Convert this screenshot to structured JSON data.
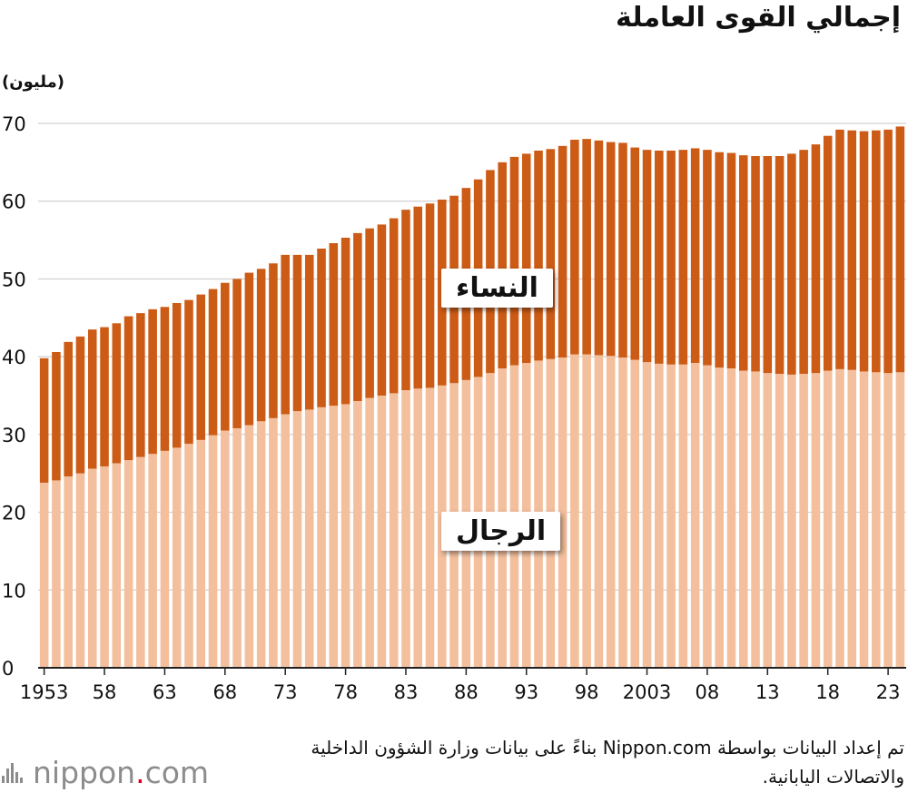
{
  "title": "إجمالي القوى العاملة",
  "unit_label": "(مليون)",
  "source": "تم إعداد البيانات بواسطة Nippon.com بناءً على بيانات وزارة الشؤون الداخلية والاتصالات اليابانية.",
  "logo": {
    "name": "nippon",
    "dot": ".",
    "suffix": "com"
  },
  "colors": {
    "women": "#cc5b15",
    "men": "#f3bf9d",
    "grid": "#d0d0d0",
    "axis": "#222222"
  },
  "chart_data": {
    "type": "bar",
    "stacked": true,
    "ylim": [
      0,
      70
    ],
    "yticks": [
      0,
      10,
      20,
      30,
      40,
      50,
      60,
      70
    ],
    "x": [
      1953,
      1954,
      1955,
      1956,
      1957,
      1958,
      1959,
      1960,
      1961,
      1962,
      1963,
      1964,
      1965,
      1966,
      1967,
      1968,
      1969,
      1970,
      1971,
      1972,
      1973,
      1974,
      1975,
      1976,
      1977,
      1978,
      1979,
      1980,
      1981,
      1982,
      1983,
      1984,
      1985,
      1986,
      1987,
      1988,
      1989,
      1990,
      1991,
      1992,
      1993,
      1994,
      1995,
      1996,
      1997,
      1998,
      1999,
      2000,
      2001,
      2002,
      2003,
      2004,
      2005,
      2006,
      2007,
      2008,
      2009,
      2010,
      2011,
      2012,
      2013,
      2014,
      2015,
      2016,
      2017,
      2018,
      2019,
      2020,
      2021,
      2022,
      2023,
      2024
    ],
    "x_tick_labels": [
      {
        "x": 1953,
        "label": "1953"
      },
      {
        "x": 1958,
        "label": "58"
      },
      {
        "x": 1963,
        "label": "63"
      },
      {
        "x": 1968,
        "label": "68"
      },
      {
        "x": 1973,
        "label": "73"
      },
      {
        "x": 1978,
        "label": "78"
      },
      {
        "x": 1983,
        "label": "83"
      },
      {
        "x": 1988,
        "label": "88"
      },
      {
        "x": 1993,
        "label": "93"
      },
      {
        "x": 1998,
        "label": "98"
      },
      {
        "x": 2003,
        "label": "2003"
      },
      {
        "x": 2008,
        "label": "08"
      },
      {
        "x": 2013,
        "label": "13"
      },
      {
        "x": 2018,
        "label": "18"
      },
      {
        "x": 2023,
        "label": "23"
      }
    ],
    "series": [
      {
        "name": "الرجال",
        "color": "#f3bf9d",
        "values": [
          23.8,
          24.1,
          24.6,
          25.0,
          25.6,
          25.9,
          26.3,
          26.7,
          27.1,
          27.5,
          27.9,
          28.3,
          28.8,
          29.3,
          29.9,
          30.5,
          30.8,
          31.2,
          31.7,
          32.1,
          32.6,
          33.0,
          33.2,
          33.5,
          33.7,
          33.9,
          34.3,
          34.7,
          35.0,
          35.3,
          35.7,
          35.9,
          36.0,
          36.3,
          36.6,
          37.0,
          37.4,
          37.9,
          38.5,
          38.9,
          39.2,
          39.5,
          39.7,
          39.9,
          40.3,
          40.3,
          40.2,
          40.1,
          39.9,
          39.6,
          39.3,
          39.1,
          39.0,
          39.0,
          39.2,
          38.9,
          38.6,
          38.5,
          38.2,
          38.1,
          37.9,
          37.8,
          37.7,
          37.8,
          37.9,
          38.2,
          38.4,
          38.3,
          38.1,
          38.0,
          37.9,
          38.0
        ]
      },
      {
        "name": "النساء",
        "color": "#cc5b15",
        "values": [
          16.0,
          16.5,
          17.3,
          17.6,
          17.9,
          17.9,
          18.0,
          18.5,
          18.5,
          18.6,
          18.5,
          18.6,
          18.5,
          18.7,
          18.8,
          19.0,
          19.2,
          19.6,
          19.6,
          19.9,
          20.5,
          20.1,
          19.9,
          20.4,
          20.9,
          21.4,
          21.6,
          21.8,
          22.0,
          22.5,
          23.2,
          23.4,
          23.7,
          23.9,
          24.1,
          24.7,
          25.4,
          26.1,
          26.5,
          26.8,
          26.9,
          27.0,
          27.0,
          27.2,
          27.6,
          27.7,
          27.6,
          27.5,
          27.6,
          27.3,
          27.3,
          27.4,
          27.5,
          27.6,
          27.6,
          27.7,
          27.7,
          27.7,
          27.7,
          27.7,
          27.9,
          28.0,
          28.4,
          28.8,
          29.4,
          30.2,
          30.8,
          30.8,
          30.9,
          31.1,
          31.3,
          31.6
        ]
      }
    ]
  },
  "series_labels": {
    "women": "النساء",
    "men": "الرجال"
  }
}
